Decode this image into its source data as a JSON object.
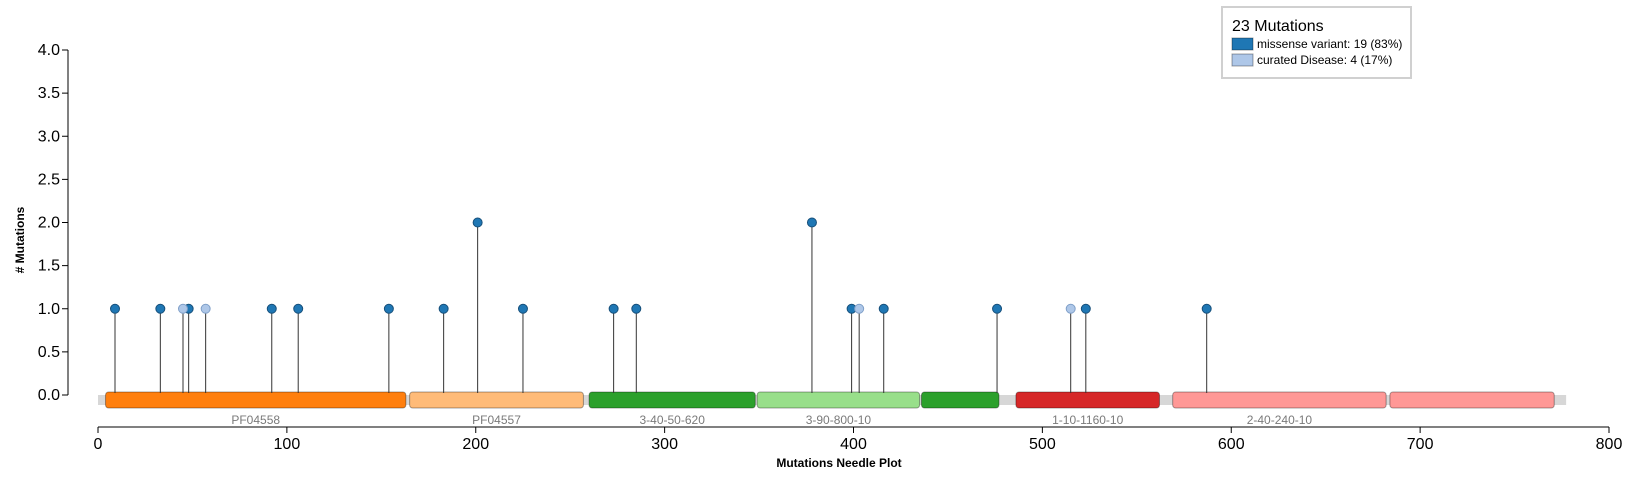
{
  "chart_data": {
    "type": "needle",
    "xlabel": "Mutations Needle Plot",
    "ylabel": "# Mutations",
    "xlim": [
      0,
      800
    ],
    "ylim": [
      0,
      4
    ],
    "x_ticks": [
      "0",
      "100",
      "200",
      "300",
      "400",
      "500",
      "600",
      "700",
      "800"
    ],
    "y_ticks": [
      "0.0",
      "0.5",
      "1.0",
      "1.5",
      "2.0",
      "2.5",
      "3.0",
      "3.5",
      "4.0"
    ],
    "legend": {
      "title": "23 Mutations",
      "entries": [
        {
          "key": "missense",
          "label": "missense variant: 19 (83%)",
          "color": "#1f77b4"
        },
        {
          "key": "disease",
          "label": "curated Disease: 4 (17%)",
          "color": "#aec7e8"
        }
      ]
    },
    "protein_length": 772,
    "series": [
      {
        "key": "missense",
        "name": "missense variant",
        "color": "#1f77b4",
        "points": [
          [
            9,
            1
          ],
          [
            33,
            1
          ],
          [
            48,
            1
          ],
          [
            92,
            1
          ],
          [
            106,
            1
          ],
          [
            154,
            1
          ],
          [
            183,
            1
          ],
          [
            201,
            2
          ],
          [
            225,
            1
          ],
          [
            273,
            1
          ],
          [
            285,
            1
          ],
          [
            378,
            2
          ],
          [
            399,
            1
          ],
          [
            416,
            1
          ],
          [
            476,
            1
          ],
          [
            523,
            1
          ],
          [
            587,
            1
          ]
        ]
      },
      {
        "key": "disease",
        "name": "curated Disease",
        "color": "#aec7e8",
        "points": [
          [
            45,
            1
          ],
          [
            57,
            1
          ],
          [
            403,
            1
          ],
          [
            515,
            1
          ]
        ]
      }
    ],
    "domains": [
      {
        "label": "PF04558",
        "start": 4,
        "end": 163,
        "color": "#ff7f0e"
      },
      {
        "label": "PF04557",
        "start": 165,
        "end": 257,
        "color": "#ffbb78"
      },
      {
        "label": "3-40-50-620",
        "start": 260,
        "end": 348,
        "color": "#2ca02c"
      },
      {
        "label": "3-90-800-10",
        "start": 349,
        "end": 435,
        "color": "#98df8a"
      },
      {
        "label": "",
        "start": 436,
        "end": 477,
        "color": "#2ca02c"
      },
      {
        "label": "1-10-1160-10",
        "start": 486,
        "end": 562,
        "color": "#d62728"
      },
      {
        "label": "2-40-240-10",
        "start": 569,
        "end": 682,
        "color": "#ff9896"
      },
      {
        "label": "",
        "start": 684,
        "end": 771,
        "color": "#ff9896"
      }
    ]
  }
}
